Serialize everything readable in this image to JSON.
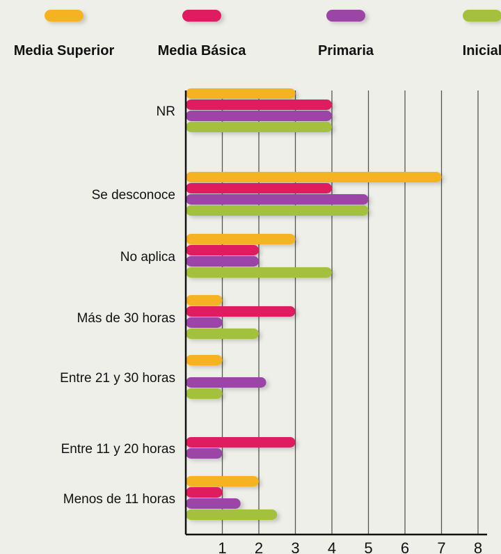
{
  "chart_data": {
    "type": "bar",
    "orientation": "horizontal",
    "title": "",
    "xlabel": "",
    "ylabel": "",
    "xlim": [
      0,
      8
    ],
    "xticks": [
      "1",
      "2",
      "3",
      "4",
      "5",
      "6",
      "7",
      "8"
    ],
    "grid": true,
    "legend_position": "top",
    "categories": [
      "NR",
      "Se desconoce",
      "No aplica",
      "Más de 30 horas",
      "Entre 21 y 30 horas",
      "Entre 11 y 20 horas",
      "Menos de 11 horas"
    ],
    "series": [
      {
        "name": "Media Superior",
        "color": "#f5b324",
        "values": [
          3,
          7,
          3,
          1,
          1,
          0,
          2
        ]
      },
      {
        "name": "Media Básica",
        "color": "#df1c5e",
        "values": [
          4,
          4,
          2,
          3,
          0,
          3,
          1
        ]
      },
      {
        "name": "Primaria",
        "color": "#9b45a7",
        "values": [
          4,
          5,
          2,
          1,
          2.2,
          1,
          1.5
        ]
      },
      {
        "name": "Inicial",
        "color": "#a4c13c",
        "values": [
          4,
          5,
          4,
          2,
          1,
          0,
          2.5
        ]
      }
    ]
  }
}
